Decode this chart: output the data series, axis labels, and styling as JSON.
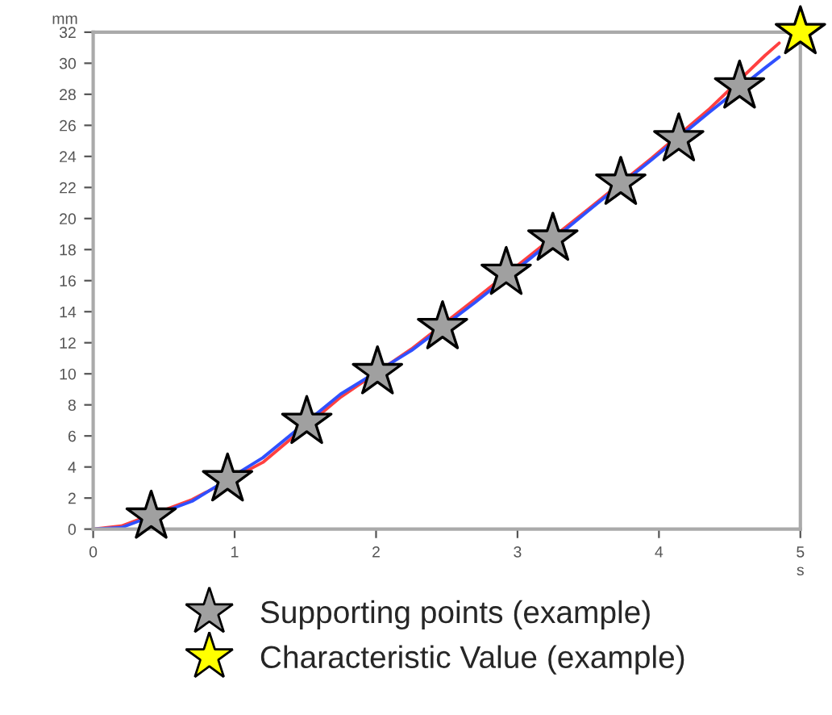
{
  "chart_data": {
    "type": "line",
    "xlabel": "s",
    "ylabel": "mm",
    "xlim": [
      0,
      5
    ],
    "ylim": [
      0,
      32
    ],
    "xticks": [
      0,
      1,
      2,
      3,
      4,
      5
    ],
    "yticks": [
      0,
      2,
      4,
      6,
      8,
      10,
      12,
      14,
      16,
      18,
      20,
      22,
      24,
      26,
      28,
      30,
      32
    ],
    "grid": false,
    "legend": "bottom",
    "series": [
      {
        "color": "#ff4040",
        "line_style": "solid",
        "marker": "none",
        "x": [
          0,
          0.2,
          0.7,
          1.2,
          1.75,
          2.25,
          2.7,
          3.1,
          3.5,
          3.95,
          4.35,
          4.75,
          4.85
        ],
        "values": [
          0,
          0.2,
          1.9,
          4.3,
          8.5,
          11.6,
          14.8,
          17.7,
          20.6,
          23.9,
          27.0,
          30.5,
          31.3
        ]
      },
      {
        "color": "#3050ff",
        "line_style": "solid",
        "marker": "none",
        "x": [
          0,
          0.2,
          0.7,
          1.2,
          1.75,
          2.25,
          2.7,
          3.1,
          3.5,
          3.95,
          4.35,
          4.75,
          4.85
        ],
        "values": [
          0,
          0.1,
          1.8,
          4.6,
          8.7,
          11.5,
          14.6,
          17.5,
          20.5,
          23.8,
          26.8,
          29.7,
          30.4
        ]
      },
      {
        "type": "scatter",
        "name": "Supporting points (example)",
        "color": "#a0a0a0",
        "marker": "star",
        "x": [
          0.41,
          0.95,
          1.51,
          2.01,
          2.47,
          2.92,
          3.25,
          3.73,
          4.14,
          4.57
        ],
        "values": [
          0.8,
          3.2,
          6.9,
          10.1,
          13.0,
          16.5,
          18.7,
          22.3,
          25.1,
          28.5
        ]
      },
      {
        "type": "scatter",
        "name": "Characteristic Value (example)",
        "color": "#ffff00",
        "marker": "star",
        "x": [
          5.0
        ],
        "values": [
          32
        ]
      }
    ]
  }
}
